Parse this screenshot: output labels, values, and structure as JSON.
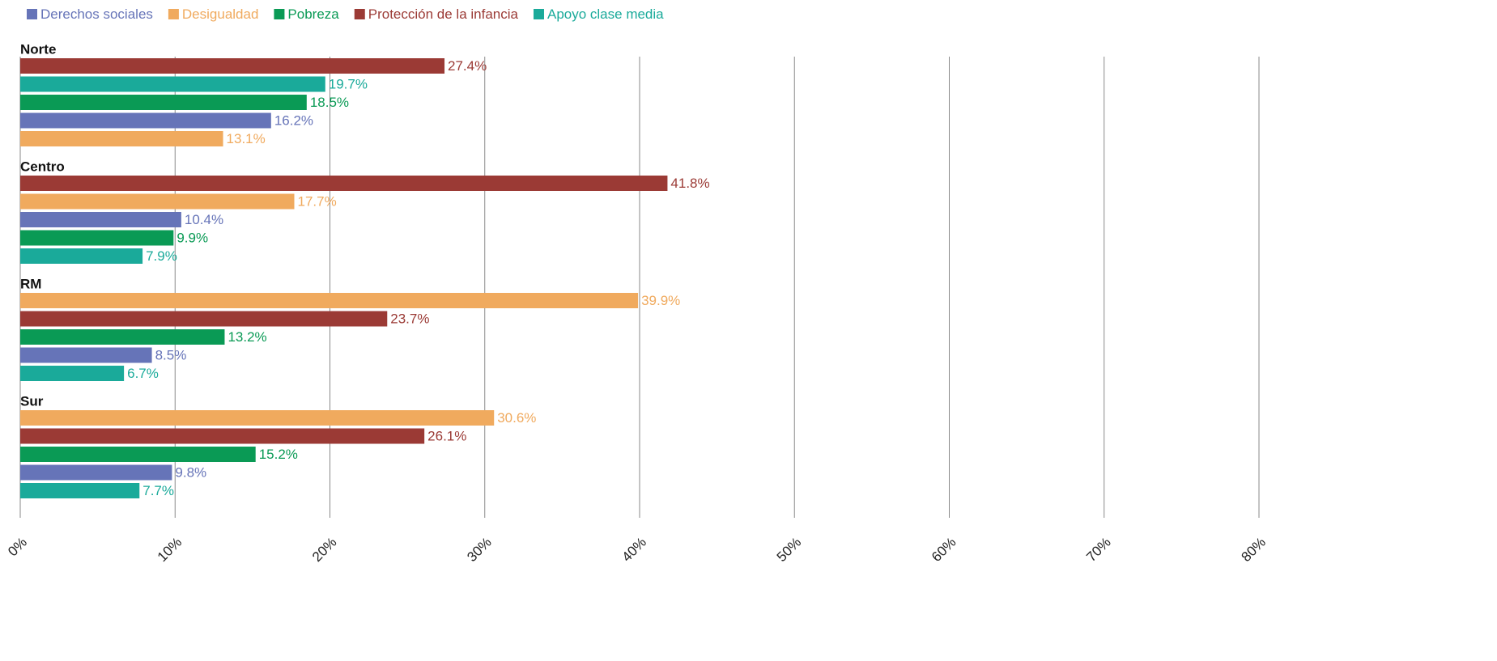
{
  "chart_data": {
    "type": "bar",
    "orientation": "horizontal",
    "categories": [
      "Norte",
      "Centro",
      "RM",
      "Sur"
    ],
    "series": [
      {
        "name": "Derechos sociales",
        "color": "#6674b8",
        "values": [
          16.2,
          10.4,
          8.5,
          9.8
        ],
        "value_labels": [
          "16.2%",
          "10.4%",
          "8.5%",
          "9.8%"
        ]
      },
      {
        "name": "Desigualdad",
        "color": "#f0aa5e",
        "values": [
          13.1,
          17.7,
          39.9,
          30.6
        ],
        "value_labels": [
          "13.1%",
          "17.7%",
          "39.9%",
          "30.6%"
        ]
      },
      {
        "name": "Pobreza",
        "color": "#0a9a55",
        "values": [
          18.5,
          9.9,
          13.2,
          15.2
        ],
        "value_labels": [
          "18.5%",
          "9.9%",
          "13.2%",
          "15.2%"
        ]
      },
      {
        "name": "Protección de la infancia",
        "color": "#9b3a35",
        "values": [
          27.4,
          41.8,
          23.7,
          26.1
        ],
        "value_labels": [
          "27.4%",
          "41.8%",
          "23.7%",
          "26.1%"
        ]
      },
      {
        "name": "Apoyo clase media",
        "color": "#1aaa9a",
        "values": [
          19.7,
          7.9,
          6.7,
          7.7
        ],
        "value_labels": [
          "19.7%",
          "7.9%",
          "6.7%",
          "7.7%"
        ]
      }
    ],
    "xlim": [
      0,
      80
    ],
    "xticks": [
      {
        "value": 0,
        "label": "0%"
      },
      {
        "value": 10,
        "label": "10%"
      },
      {
        "value": 20,
        "label": "20%"
      },
      {
        "value": 30,
        "label": "30%"
      },
      {
        "value": 40,
        "label": "40%"
      },
      {
        "value": 50,
        "label": "50%"
      },
      {
        "value": 60,
        "label": "60%"
      },
      {
        "value": 70,
        "label": "70%"
      },
      {
        "value": 80,
        "label": "80%"
      }
    ],
    "grid": true,
    "legend": "top-left"
  }
}
